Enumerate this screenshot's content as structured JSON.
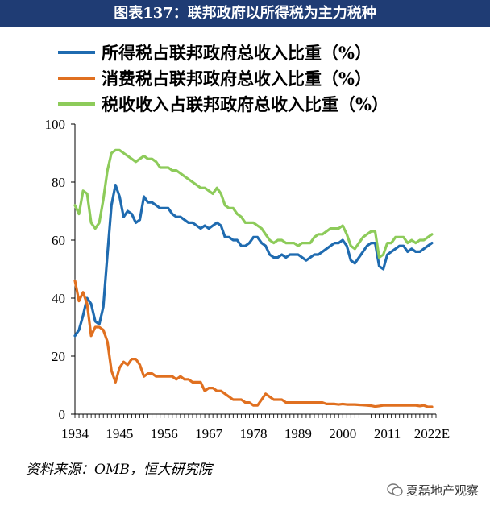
{
  "title": "图表137：联邦政府以所得税为主力税种",
  "source": "资料来源：OMB，恒大研究院",
  "watermark": "夏磊地产观察",
  "chart_data": {
    "type": "line",
    "title": "图表137：联邦政府以所得税为主力税种",
    "xlabel": "",
    "ylabel": "",
    "xlim": [
      1934,
      2023
    ],
    "ylim": [
      0,
      100
    ],
    "y_ticks": [
      0,
      20,
      40,
      60,
      80,
      100
    ],
    "x_ticks": [
      1934,
      1945,
      1956,
      1967,
      1978,
      1989,
      2000,
      2011,
      2022
    ],
    "x_tick_labels": [
      "1934",
      "1945",
      "1956",
      "1967",
      "1978",
      "1989",
      "2000",
      "2011",
      "2022E"
    ],
    "grid": false,
    "legend_position": "top",
    "series": [
      {
        "name": "所得税占联邦政府总收入比重（%）",
        "color": "#1f6bb0",
        "x": [
          1934,
          1935,
          1936,
          1937,
          1938,
          1939,
          1940,
          1941,
          1942,
          1943,
          1944,
          1945,
          1946,
          1947,
          1948,
          1949,
          1950,
          1951,
          1952,
          1953,
          1954,
          1955,
          1956,
          1957,
          1958,
          1959,
          1960,
          1961,
          1962,
          1963,
          1964,
          1965,
          1966,
          1967,
          1968,
          1969,
          1970,
          1971,
          1972,
          1973,
          1974,
          1975,
          1976,
          1977,
          1978,
          1979,
          1980,
          1981,
          1982,
          1983,
          1984,
          1985,
          1986,
          1987,
          1988,
          1989,
          1990,
          1991,
          1992,
          1993,
          1994,
          1995,
          1996,
          1997,
          1998,
          1999,
          2000,
          2001,
          2002,
          2003,
          2004,
          2005,
          2006,
          2007,
          2008,
          2009,
          2010,
          2011,
          2012,
          2013,
          2014,
          2015,
          2016,
          2017,
          2018,
          2019,
          2020,
          2021,
          2022
        ],
        "values": [
          27,
          29,
          34,
          40,
          38,
          32,
          31,
          37,
          55,
          72,
          79,
          75,
          68,
          70,
          69,
          66,
          67,
          75,
          73,
          73,
          72,
          71,
          71,
          71,
          69,
          68,
          68,
          67,
          66,
          66,
          65,
          64,
          65,
          64,
          65,
          66,
          65,
          61,
          61,
          60,
          60,
          58,
          58,
          59,
          61,
          61,
          59,
          58,
          55,
          54,
          54,
          55,
          54,
          55,
          55,
          55,
          54,
          53,
          54,
          55,
          55,
          56,
          57,
          58,
          59,
          59,
          60,
          58,
          53,
          52,
          54,
          56,
          58,
          59,
          59,
          51,
          50,
          55,
          56,
          57,
          58,
          58,
          56,
          57,
          56,
          56,
          57,
          58,
          59
        ]
      },
      {
        "name": "消费税占联邦政府总收入比重（%）",
        "color": "#e07020",
        "x": [
          1934,
          1935,
          1936,
          1937,
          1938,
          1939,
          1940,
          1941,
          1942,
          1943,
          1944,
          1945,
          1946,
          1947,
          1948,
          1949,
          1950,
          1951,
          1952,
          1953,
          1954,
          1955,
          1956,
          1957,
          1958,
          1959,
          1960,
          1961,
          1962,
          1963,
          1964,
          1965,
          1966,
          1967,
          1968,
          1969,
          1970,
          1971,
          1972,
          1973,
          1974,
          1975,
          1976,
          1977,
          1978,
          1979,
          1980,
          1981,
          1982,
          1983,
          1984,
          1985,
          1986,
          1987,
          1988,
          1989,
          1990,
          1991,
          1992,
          1993,
          1994,
          1995,
          1996,
          1997,
          1998,
          1999,
          2000,
          2001,
          2002,
          2003,
          2004,
          2005,
          2006,
          2007,
          2008,
          2009,
          2010,
          2011,
          2012,
          2013,
          2014,
          2015,
          2016,
          2017,
          2018,
          2019,
          2020,
          2021,
          2022
        ],
        "values": [
          46,
          39,
          42,
          38,
          27,
          30,
          30,
          29,
          25,
          15,
          11,
          16,
          18,
          17,
          19,
          19,
          17,
          13,
          14,
          14,
          13,
          13,
          13,
          13,
          13,
          12,
          13,
          12,
          12,
          11,
          11,
          11,
          8,
          9,
          9,
          8,
          8,
          7,
          6,
          5,
          5,
          5,
          4,
          4,
          3,
          3,
          5,
          7,
          6,
          5,
          5,
          5,
          4,
          4,
          4,
          4,
          4,
          4,
          4,
          4,
          4,
          4,
          3.5,
          3.5,
          3.5,
          3.3,
          3.5,
          3.3,
          3.3,
          3.3,
          3.2,
          3.1,
          3,
          2.9,
          2.6,
          2.8,
          3,
          3,
          3,
          3,
          3,
          3,
          3,
          3,
          3,
          2.8,
          3,
          2.5,
          2.5
        ]
      },
      {
        "name": "税收收入占联邦政府总收入比重（%）",
        "color": "#8dcb5a",
        "x": [
          1934,
          1935,
          1936,
          1937,
          1938,
          1939,
          1940,
          1941,
          1942,
          1943,
          1944,
          1945,
          1946,
          1947,
          1948,
          1949,
          1950,
          1951,
          1952,
          1953,
          1954,
          1955,
          1956,
          1957,
          1958,
          1959,
          1960,
          1961,
          1962,
          1963,
          1964,
          1965,
          1966,
          1967,
          1968,
          1969,
          1970,
          1971,
          1972,
          1973,
          1974,
          1975,
          1976,
          1977,
          1978,
          1979,
          1980,
          1981,
          1982,
          1983,
          1984,
          1985,
          1986,
          1987,
          1988,
          1989,
          1990,
          1991,
          1992,
          1993,
          1994,
          1995,
          1996,
          1997,
          1998,
          1999,
          2000,
          2001,
          2002,
          2003,
          2004,
          2005,
          2006,
          2007,
          2008,
          2009,
          2010,
          2011,
          2012,
          2013,
          2014,
          2015,
          2016,
          2017,
          2018,
          2019,
          2020,
          2021,
          2022
        ],
        "values": [
          72,
          69,
          77,
          76,
          66,
          64,
          66,
          74,
          84,
          90,
          91,
          91,
          90,
          89,
          88,
          87,
          88,
          89,
          88,
          88,
          87,
          85,
          85,
          85,
          84,
          84,
          83,
          82,
          81,
          80,
          79,
          78,
          78,
          77,
          76,
          78,
          76,
          72,
          71,
          71,
          69,
          68,
          66,
          66,
          66,
          65,
          64,
          62,
          60,
          59,
          60,
          60,
          59,
          59,
          59,
          58,
          59,
          59,
          59,
          61,
          62,
          62,
          63,
          64,
          64,
          64,
          65,
          62,
          58,
          57,
          59,
          61,
          62,
          63,
          63,
          54,
          55,
          59,
          59,
          61,
          61,
          61,
          59,
          60,
          59,
          60,
          60,
          61,
          62
        ]
      }
    ]
  }
}
